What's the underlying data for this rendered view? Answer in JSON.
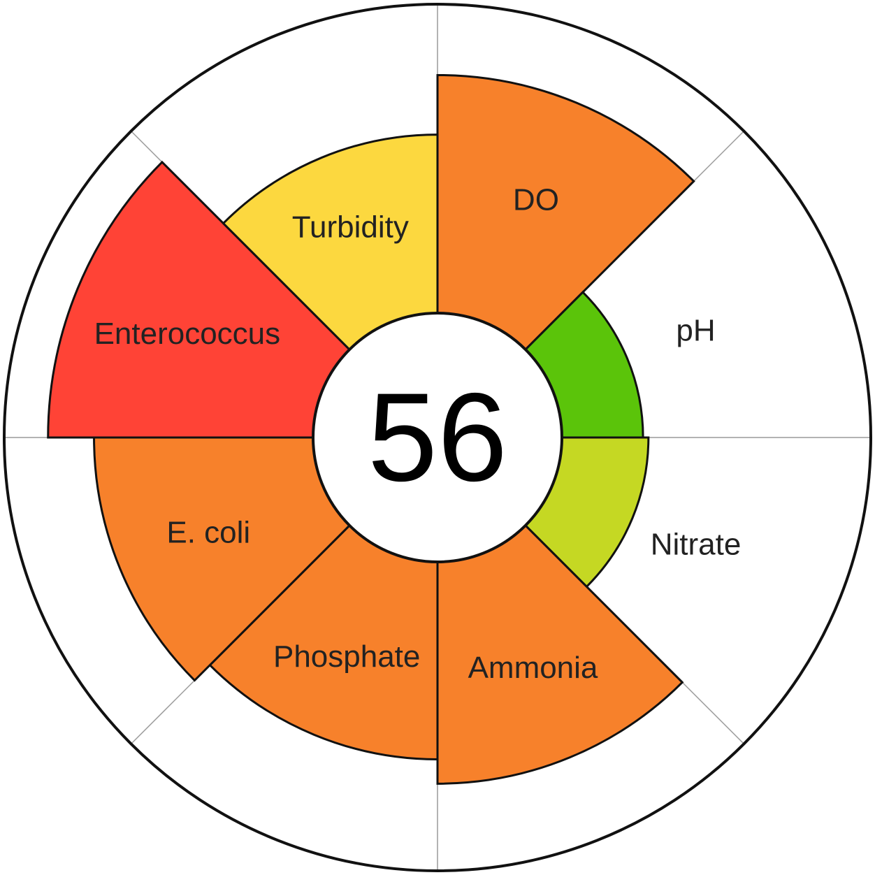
{
  "chart_data": {
    "type": "polar-area",
    "title": "",
    "center_score": "56",
    "max_value": 100,
    "grid": true,
    "segments": [
      {
        "label": "DO",
        "value": 88,
        "color": "#F7812B"
      },
      {
        "label": "pH",
        "value": 30,
        "color": "#5BC40A"
      },
      {
        "label": "Nitrate",
        "value": 32,
        "color": "#C5D823"
      },
      {
        "label": "Ammonia",
        "value": 82,
        "color": "#F7812B"
      },
      {
        "label": "Phosphate",
        "value": 73,
        "color": "#F7812B"
      },
      {
        "label": "E. coli",
        "value": 81,
        "color": "#F7812B"
      },
      {
        "label": "Enterococcus",
        "value": 98,
        "color": "#FF4336"
      },
      {
        "label": "Turbidity",
        "value": 66,
        "color": "#FCD83F"
      }
    ]
  }
}
